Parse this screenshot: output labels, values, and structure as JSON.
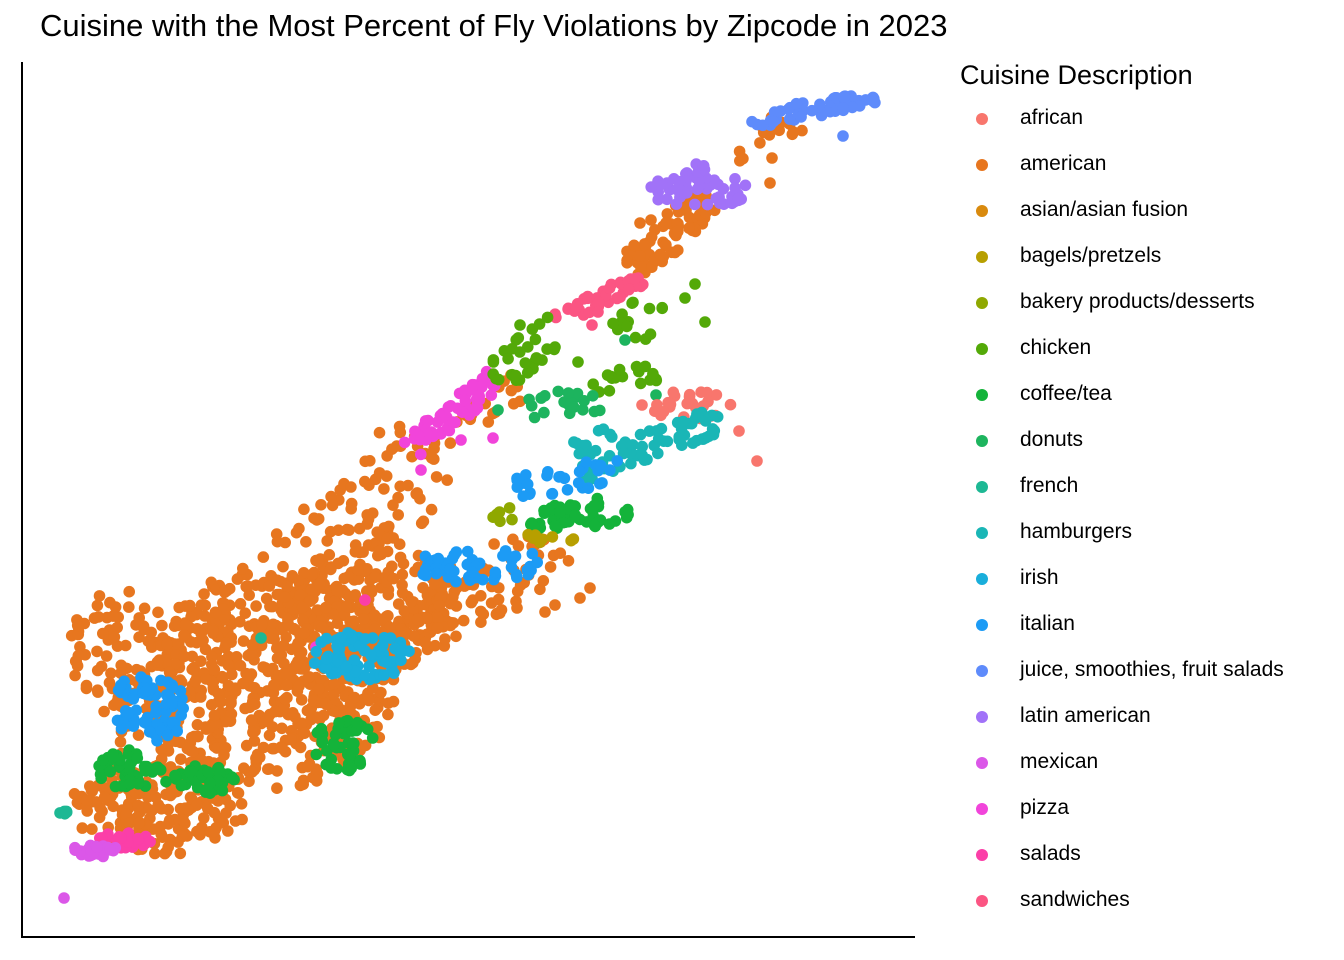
{
  "chart_data": {
    "type": "scatter",
    "title": "Cuisine with the Most Percent of Fly Violations by Zipcode in 2023",
    "xlabel": "",
    "ylabel": "",
    "legend_title": "Cuisine Description",
    "legend_position": "right",
    "grid": false,
    "axes": "left and bottom lines only, no ticks or labels",
    "series": [
      {
        "name": "african",
        "color": "#F8766D"
      },
      {
        "name": "american",
        "color": "#E7761F"
      },
      {
        "name": "asian/asian fusion",
        "color": "#D98A0E"
      },
      {
        "name": "bagels/pretzels",
        "color": "#B79F00"
      },
      {
        "name": "bakery products/desserts",
        "color": "#8FA800"
      },
      {
        "name": "chicken",
        "color": "#53A908"
      },
      {
        "name": "coffee/tea",
        "color": "#14B33A"
      },
      {
        "name": "donuts",
        "color": "#1DB45E"
      },
      {
        "name": "french",
        "color": "#1DB894"
      },
      {
        "name": "hamburgers",
        "color": "#1AB6B6"
      },
      {
        "name": "irish",
        "color": "#19AEDB"
      },
      {
        "name": "italian",
        "color": "#1C9BF5"
      },
      {
        "name": "juice, smoothies, fruit salads",
        "color": "#5E8BFB"
      },
      {
        "name": "latin american",
        "color": "#A172F8"
      },
      {
        "name": "mexican",
        "color": "#DB57E8"
      },
      {
        "name": "pizza",
        "color": "#F144DA"
      },
      {
        "name": "salads",
        "color": "#FB3FA8"
      },
      {
        "name": "sandwiches",
        "color": "#FB5583"
      }
    ]
  }
}
